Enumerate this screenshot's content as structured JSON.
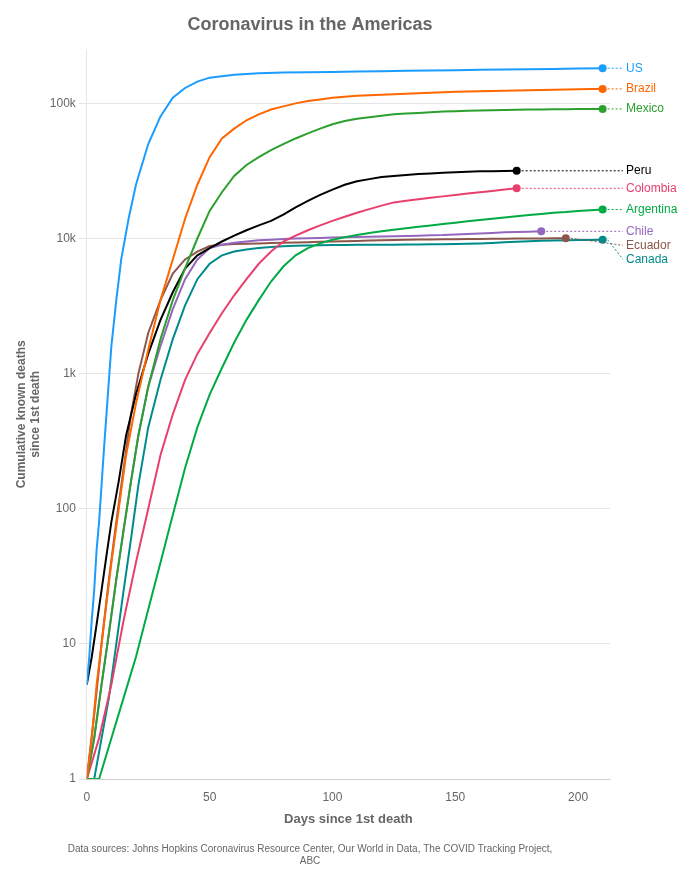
{
  "chart_data": {
    "type": "line",
    "title": "Coronavirus in the Americas",
    "xlabel": "Days since 1st death",
    "ylabel": [
      "Cumulative known deaths",
      "since 1st death"
    ],
    "footer": "Data sources: Johns Hopkins Coronavirus Resource Center, Our World in Data, The COVID Tracking Project,\nABC",
    "log": "y",
    "grid": "y",
    "xlim": [
      0,
      213
    ],
    "ylim": [
      1,
      250000
    ],
    "xticks": [
      0,
      50,
      100,
      150,
      200
    ],
    "yticks": [
      1,
      10,
      100,
      {
        "value": 1000,
        "label": "1k"
      },
      {
        "value": 10000,
        "label": "10k"
      },
      {
        "value": 100000,
        "label": "100k"
      }
    ],
    "series": [
      {
        "name": "US",
        "color": "#1a9dff",
        "x": [
          0,
          1,
          2,
          3,
          4,
          5,
          6,
          7,
          8,
          9,
          10,
          12,
          14,
          17,
          20,
          25,
          30,
          35,
          40,
          45,
          50,
          60,
          70,
          80,
          90,
          100,
          110,
          120,
          130,
          140,
          150,
          160,
          170,
          180,
          190,
          200,
          210
        ],
        "values": [
          5,
          8,
          15,
          25,
          50,
          80,
          150,
          280,
          500,
          900,
          1600,
          3500,
          7000,
          14000,
          25000,
          50000,
          80000,
          110000,
          130000,
          145000,
          155000,
          163000,
          167000,
          169000,
          170000,
          171000,
          172000,
          173000,
          174000,
          175000,
          176000,
          177000,
          178000,
          179000,
          180000,
          181000,
          182000
        ]
      },
      {
        "name": "Brazil",
        "color": "#ff6600",
        "x": [
          0,
          2,
          4,
          6,
          8,
          10,
          13,
          16,
          20,
          25,
          30,
          35,
          40,
          45,
          50,
          55,
          60,
          65,
          70,
          75,
          80,
          85,
          90,
          95,
          100,
          105,
          110,
          115,
          120,
          125,
          130,
          135,
          140,
          145,
          150,
          155,
          160,
          165,
          170,
          175,
          180,
          185,
          190,
          195,
          200,
          205,
          210
        ],
        "values": [
          1,
          2,
          5,
          10,
          20,
          40,
          100,
          250,
          600,
          1500,
          3500,
          7000,
          14000,
          25000,
          40000,
          55000,
          65000,
          75000,
          83000,
          90000,
          95000,
          100000,
          104000,
          107000,
          110000,
          112000,
          114000,
          115000,
          116000,
          117000,
          118000,
          119000,
          120000,
          121000,
          122000,
          122500,
          123000,
          123500,
          124000,
          124500,
          125000,
          125500,
          126000,
          126500,
          127000,
          127500,
          128000
        ]
      },
      {
        "name": "Mexico",
        "color": "#2ca02c",
        "x": [
          0,
          3,
          6,
          9,
          12,
          15,
          18,
          21,
          25,
          30,
          35,
          40,
          45,
          50,
          55,
          60,
          65,
          70,
          75,
          80,
          85,
          90,
          95,
          100,
          105,
          110,
          115,
          120,
          125,
          130,
          135,
          140,
          145,
          150,
          155,
          160,
          165,
          170,
          175,
          180,
          185,
          190,
          195,
          200,
          205,
          210
        ],
        "values": [
          1,
          2,
          5,
          12,
          30,
          70,
          160,
          350,
          800,
          1800,
          3500,
          6000,
          10000,
          16000,
          22000,
          29000,
          35000,
          40000,
          45000,
          50000,
          55000,
          60000,
          65000,
          70000,
          74000,
          77000,
          79000,
          81000,
          83000,
          84000,
          85000,
          86000,
          87000,
          87500,
          88000,
          88500,
          89000,
          89300,
          89600,
          89900,
          90100,
          90300,
          90500,
          90700,
          90900,
          91000
        ]
      },
      {
        "name": "Peru",
        "color": "#000000",
        "x": [
          0,
          2,
          4,
          6,
          8,
          10,
          13,
          16,
          20,
          25,
          30,
          35,
          40,
          45,
          50,
          55,
          60,
          65,
          70,
          75,
          80,
          85,
          90,
          95,
          100,
          105,
          110,
          115,
          120,
          125,
          130,
          135,
          140,
          145,
          150,
          155,
          160,
          165,
          170,
          175
        ],
        "values": [
          5,
          8,
          14,
          25,
          45,
          80,
          160,
          350,
          700,
          1400,
          2500,
          4000,
          6000,
          7500,
          8500,
          9500,
          10500,
          11500,
          12500,
          13500,
          15000,
          17000,
          19000,
          21000,
          23000,
          25000,
          26500,
          27500,
          28500,
          29000,
          29500,
          30000,
          30300,
          30600,
          30900,
          31200,
          31400,
          31500,
          31600,
          31700
        ]
      },
      {
        "name": "Colombia",
        "color": "#e8406c",
        "x": [
          0,
          5,
          10,
          15,
          20,
          25,
          30,
          35,
          40,
          45,
          50,
          55,
          60,
          65,
          70,
          75,
          80,
          85,
          90,
          95,
          100,
          105,
          110,
          115,
          120,
          125,
          130,
          135,
          140,
          145,
          150,
          155,
          160,
          165,
          170,
          175
        ],
        "values": [
          1,
          2,
          5,
          15,
          40,
          100,
          250,
          500,
          900,
          1400,
          2000,
          2800,
          3800,
          5000,
          6500,
          8000,
          9500,
          10500,
          11500,
          12500,
          13500,
          14500,
          15500,
          16500,
          17500,
          18500,
          19000,
          19500,
          20000,
          20500,
          21000,
          21500,
          22000,
          22500,
          23000,
          23500
        ]
      },
      {
        "name": "Argentina",
        "color": "#00aa44",
        "x": [
          0,
          5,
          10,
          15,
          20,
          25,
          30,
          35,
          40,
          45,
          50,
          55,
          60,
          65,
          70,
          75,
          80,
          85,
          90,
          95,
          100,
          105,
          110,
          115,
          120,
          125,
          130,
          135,
          140,
          145,
          150,
          155,
          160,
          165,
          170,
          175,
          180,
          185,
          190,
          195,
          200,
          205,
          210
        ],
        "values": [
          1,
          1,
          2,
          4,
          8,
          18,
          40,
          90,
          200,
          400,
          700,
          1100,
          1700,
          2500,
          3500,
          4800,
          6200,
          7500,
          8500,
          9200,
          9800,
          10200,
          10600,
          11000,
          11300,
          11600,
          11900,
          12200,
          12500,
          12800,
          13100,
          13400,
          13700,
          14000,
          14300,
          14600,
          14900,
          15200,
          15500,
          15700,
          16000,
          16200,
          16400
        ]
      },
      {
        "name": "Chile",
        "color": "#9467bd",
        "x": [
          0,
          3,
          6,
          9,
          12,
          15,
          18,
          21,
          25,
          30,
          35,
          40,
          45,
          50,
          55,
          60,
          65,
          70,
          75,
          80,
          85,
          90,
          95,
          100,
          105,
          110,
          115,
          120,
          125,
          130,
          135,
          140,
          145,
          150,
          155,
          160,
          165,
          170,
          175,
          180,
          185
        ],
        "values": [
          1,
          2,
          5,
          12,
          30,
          70,
          160,
          350,
          800,
          1600,
          3000,
          5000,
          7000,
          8500,
          9000,
          9300,
          9500,
          9700,
          9800,
          9900,
          10000,
          10050,
          10100,
          10150,
          10200,
          10250,
          10300,
          10350,
          10400,
          10450,
          10500,
          10550,
          10600,
          10700,
          10800,
          10900,
          11000,
          11100,
          11150,
          11200,
          11300
        ]
      },
      {
        "name": "Ecuador",
        "color": "#8c564b",
        "x": [
          0,
          3,
          6,
          9,
          12,
          15,
          18,
          21,
          25,
          30,
          35,
          40,
          45,
          50,
          55,
          60,
          65,
          70,
          75,
          80,
          85,
          90,
          95,
          100,
          105,
          110,
          115,
          120,
          125,
          130,
          135,
          140,
          145,
          150,
          155,
          160,
          165,
          170,
          175,
          180,
          185,
          190,
          195
        ],
        "values": [
          1,
          3,
          10,
          30,
          80,
          200,
          500,
          1000,
          2000,
          3500,
          5500,
          7000,
          8000,
          8800,
          9000,
          9100,
          9150,
          9200,
          9250,
          9300,
          9350,
          9400,
          9450,
          9500,
          9550,
          9600,
          9650,
          9700,
          9750,
          9800,
          9820,
          9840,
          9860,
          9880,
          9900,
          9920,
          9940,
          9960,
          9980,
          10000,
          10020,
          10040,
          10060
        ]
      },
      {
        "name": "Canada",
        "color": "#008b8b",
        "x": [
          0,
          3,
          6,
          9,
          12,
          15,
          18,
          21,
          25,
          30,
          35,
          40,
          45,
          50,
          55,
          60,
          65,
          70,
          75,
          80,
          85,
          90,
          95,
          100,
          105,
          110,
          115,
          120,
          125,
          130,
          135,
          140,
          145,
          150,
          155,
          160,
          165,
          170,
          175,
          180,
          185,
          190,
          195,
          200,
          205,
          210
        ],
        "values": [
          1,
          1,
          2,
          4,
          10,
          25,
          60,
          150,
          400,
          900,
          1800,
          3200,
          5000,
          6500,
          7500,
          8000,
          8300,
          8500,
          8650,
          8750,
          8820,
          8870,
          8910,
          8940,
          8960,
          8975,
          8985,
          8993,
          9000,
          9020,
          9040,
          9060,
          9080,
          9100,
          9150,
          9200,
          9280,
          9380,
          9480,
          9560,
          9620,
          9670,
          9710,
          9740,
          9760,
          9780
        ]
      }
    ],
    "annotations": [
      {
        "text": "US",
        "x": 210,
        "y": 182000,
        "color": "#1a9dff"
      },
      {
        "text": "Brazil",
        "x": 210,
        "y": 128000,
        "color": "#ff6600"
      },
      {
        "text": "Mexico",
        "x": 210,
        "y": 91000,
        "color": "#2ca02c"
      },
      {
        "text": "Peru",
        "x": 175,
        "y": 31700,
        "color": "#000000"
      },
      {
        "text": "Colombia",
        "x": 175,
        "y": 23500,
        "color": "#e8406c"
      },
      {
        "text": "Argentina",
        "x": 210,
        "y": 16400,
        "color": "#00aa44"
      },
      {
        "text": "Chile",
        "x": 185,
        "y": 11300,
        "color": "#9467bd"
      },
      {
        "text": "Ecuador",
        "x": 195,
        "y": 10060,
        "color": "#8c564b"
      },
      {
        "text": "Canada",
        "x": 210,
        "y": 9780,
        "color": "#008b8b"
      }
    ]
  }
}
